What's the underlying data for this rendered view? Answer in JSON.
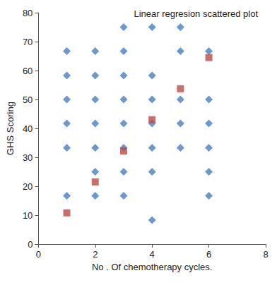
{
  "chart_data": {
    "type": "scatter",
    "title": "Linear regresion scattered plot",
    "x_label": "No . Of chemotherapy cycles.",
    "y_label": "GHS Scoring",
    "xlim": [
      0,
      8
    ],
    "xticks": [
      0,
      2,
      4,
      6,
      8
    ],
    "ylim": [
      0,
      80
    ],
    "yticks": [
      0,
      10,
      20,
      30,
      40,
      50,
      60,
      70,
      80
    ],
    "grid": false,
    "series": [
      {
        "color": "#4a7ebb",
        "marker": "diamond",
        "x": [
          1,
          1,
          1,
          1,
          1,
          1,
          2,
          2,
          2,
          2,
          2,
          2,
          2,
          3,
          3,
          3,
          3,
          3,
          3,
          3,
          3,
          4,
          4,
          4,
          4,
          4,
          4,
          4,
          5,
          5,
          5,
          5,
          5,
          6,
          6,
          6,
          6,
          6,
          6
        ],
        "values": [
          66.7,
          58.3,
          50,
          41.7,
          33.3,
          16.7,
          66.7,
          58.3,
          50,
          41.7,
          33.3,
          25,
          16.7,
          75,
          66.7,
          58.3,
          50,
          41.7,
          33.3,
          25,
          16.7,
          75,
          58.3,
          50,
          41.7,
          33.3,
          25,
          8.3,
          75,
          66.7,
          50,
          41.7,
          33.3,
          66.7,
          50,
          41.7,
          33.3,
          25,
          16.7
        ]
      },
      {
        "color": "#be4b48",
        "marker": "square",
        "x": [
          1,
          2,
          3,
          4,
          5,
          6
        ],
        "values": [
          10.8,
          21.5,
          32.2,
          43,
          53.7,
          64.5
        ]
      }
    ]
  }
}
